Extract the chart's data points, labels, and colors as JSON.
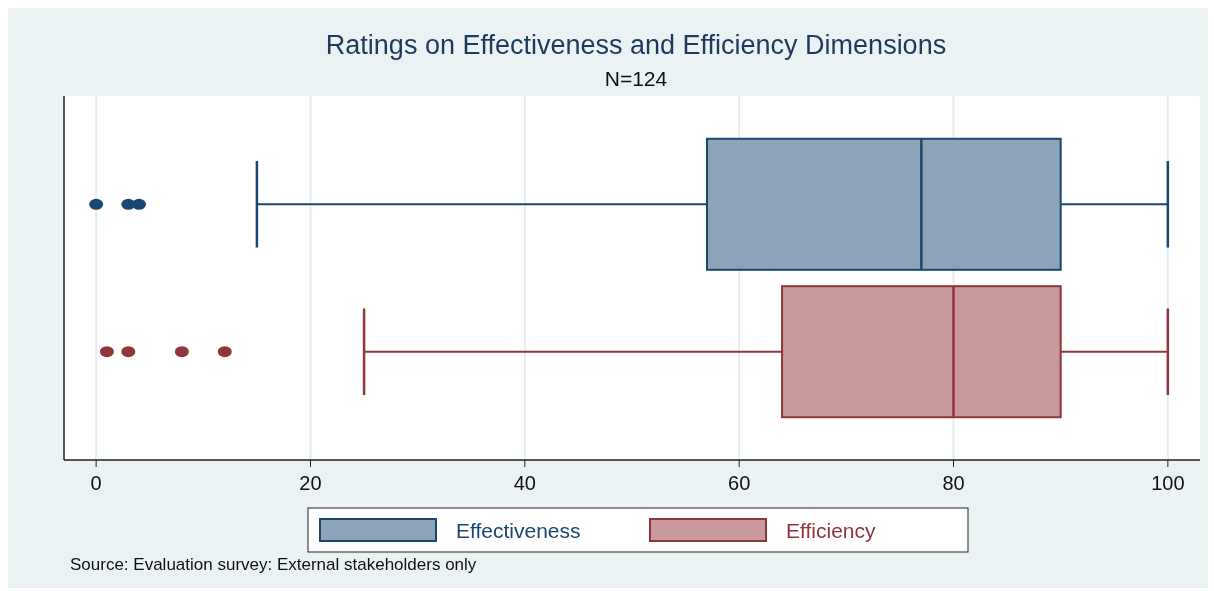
{
  "chart_data": {
    "type": "box",
    "title": "Ratings on Effectiveness and Efficiency Dimensions",
    "subtitle": "N=124",
    "orientation": "horizontal",
    "categories": [
      null
    ],
    "series": [
      {
        "name": "Effectiveness",
        "color": "#1a476f",
        "boxes": [
          {
            "low": 15,
            "q1": 57,
            "median": 77,
            "q3": 90,
            "high": 100,
            "outliers": [
              0,
              3,
              4
            ]
          }
        ]
      },
      {
        "name": "Efficiency",
        "color": "#90353b",
        "boxes": [
          {
            "low": 25,
            "q1": 64,
            "median": 80,
            "q3": 90,
            "high": 100,
            "outliers": [
              1,
              3,
              8,
              12
            ]
          }
        ]
      }
    ],
    "xlim": [
      -3,
      103
    ],
    "xticks": [
      0,
      20,
      40,
      60,
      80,
      100
    ],
    "grid": "x",
    "legend": "bottom",
    "tick_labels": "x",
    "annotations": [
      "Source: Evaluation survey: External stakeholders only"
    ]
  }
}
